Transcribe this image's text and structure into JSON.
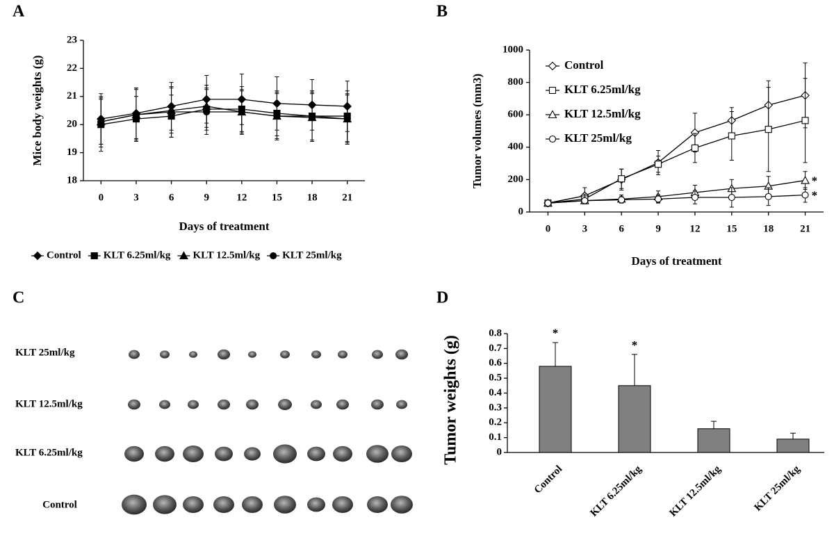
{
  "chart_data": [
    {
      "panel": "A",
      "type": "line",
      "ylabel": "Mice body weights (g)",
      "xlabel": "Days of treatment",
      "x": [
        0,
        3,
        6,
        9,
        12,
        15,
        18,
        21
      ],
      "xlim": [
        -1.5,
        22.5
      ],
      "xticks": [
        0,
        3,
        6,
        9,
        12,
        15,
        18,
        21
      ],
      "ylim": [
        18,
        23
      ],
      "yticks": [
        18,
        19,
        20,
        21,
        22,
        23
      ],
      "legend": "bottom",
      "marker_fill": "filled",
      "series": [
        {
          "name": "Control",
          "marker": "diamond",
          "color": "#000000",
          "values": [
            20.2,
            20.4,
            20.65,
            20.9,
            20.9,
            20.75,
            20.7,
            20.65
          ],
          "errors": [
            0.9,
            0.9,
            0.85,
            0.85,
            0.9,
            0.95,
            0.9,
            0.9
          ]
        },
        {
          "name": "KLT 6.25ml/kg",
          "marker": "square",
          "color": "#000000",
          "values": [
            20.0,
            20.2,
            20.3,
            20.55,
            20.55,
            20.4,
            20.3,
            20.3
          ],
          "errors": [
            0.95,
            0.8,
            0.75,
            0.75,
            0.8,
            0.8,
            0.9,
            0.9
          ]
        },
        {
          "name": "KLT 12.5ml/kg",
          "marker": "triangle",
          "color": "#000000",
          "values": [
            20.1,
            20.35,
            20.5,
            20.65,
            20.45,
            20.3,
            20.25,
            20.2
          ],
          "errors": [
            0.9,
            0.9,
            0.8,
            0.75,
            0.75,
            0.8,
            0.85,
            0.9
          ]
        },
        {
          "name": "KLT 25ml/kg",
          "marker": "circle",
          "color": "#000000",
          "values": [
            20.1,
            20.35,
            20.45,
            20.45,
            20.45,
            20.3,
            20.3,
            20.2
          ],
          "errors": [
            0.8,
            0.95,
            0.9,
            0.8,
            0.8,
            0.85,
            0.85,
            0.85
          ]
        }
      ]
    },
    {
      "panel": "B",
      "type": "line",
      "ylabel": "Tumor volumes (mm3)",
      "xlabel": "Days of treatment",
      "x": [
        0,
        3,
        6,
        9,
        12,
        15,
        18,
        21
      ],
      "xlim": [
        -1.5,
        22.5
      ],
      "xticks": [
        0,
        3,
        6,
        9,
        12,
        15,
        18,
        21
      ],
      "ylim": [
        0,
        1000
      ],
      "yticks": [
        0,
        200,
        400,
        600,
        800,
        1000
      ],
      "legend": "upper left",
      "marker_fill": "open",
      "series": [
        {
          "name": "Control",
          "marker": "diamond",
          "color": "#000000",
          "values": [
            55,
            100,
            200,
            305,
            490,
            565,
            660,
            720
          ],
          "errors": [
            15,
            50,
            65,
            75,
            120,
            80,
            150,
            200
          ]
        },
        {
          "name": "KLT 6.25ml/kg",
          "marker": "square",
          "color": "#000000",
          "values": [
            55,
            80,
            205,
            295,
            395,
            470,
            510,
            565
          ],
          "errors": [
            10,
            30,
            60,
            50,
            90,
            150,
            260,
            260
          ]
        },
        {
          "name": "KLT 12.5ml/kg",
          "marker": "triangle",
          "color": "#000000",
          "values": [
            55,
            70,
            80,
            95,
            120,
            145,
            160,
            195
          ],
          "errors": [
            10,
            15,
            25,
            35,
            45,
            55,
            60,
            55
          ],
          "annotation": "*"
        },
        {
          "name": "KLT 25ml/kg",
          "marker": "circle",
          "color": "#000000",
          "values": [
            55,
            70,
            75,
            80,
            90,
            90,
            95,
            105
          ],
          "errors": [
            10,
            15,
            20,
            25,
            40,
            60,
            55,
            45
          ],
          "annotation": "*"
        }
      ]
    },
    {
      "panel": "D",
      "type": "bar",
      "ylabel": "Tumor weights (g)",
      "categories": [
        "Control",
        "KLT 6.25ml/kg",
        "KLT 12.5ml/kg",
        "KLT 25ml/kg"
      ],
      "values": [
        0.58,
        0.45,
        0.16,
        0.09
      ],
      "errors": [
        0.16,
        0.21,
        0.05,
        0.04
      ],
      "value_annotations": [
        "*",
        "*",
        null,
        null
      ],
      "color": "#808080",
      "ylim": [
        0,
        0.8
      ],
      "yticks": [
        0,
        0.1,
        0.2,
        0.3,
        0.4,
        0.5,
        0.6,
        0.7,
        0.8
      ]
    }
  ],
  "photo_panel": {
    "panel": "C",
    "rows": [
      "KLT 25ml/kg",
      "KLT 12.5ml/kg",
      "KLT 6.25ml/kg",
      "Control"
    ]
  }
}
